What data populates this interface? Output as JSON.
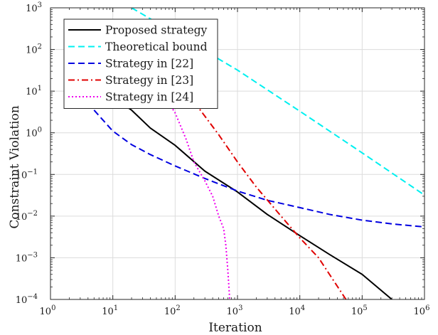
{
  "chart_data": {
    "type": "line",
    "title": "",
    "xlabel": "Iteration",
    "ylabel": "Constraint Violation",
    "xscale": "log",
    "yscale": "log",
    "xlim": [
      1,
      1000000
    ],
    "ylim": [
      0.0001,
      1000
    ],
    "grid": true,
    "legend_position": "top-left",
    "x_ticks": [
      1,
      10,
      100,
      1000,
      10000,
      100000,
      1000000
    ],
    "x_tick_labels": [
      {
        "base": "10",
        "exp": "0"
      },
      {
        "base": "10",
        "exp": "1"
      },
      {
        "base": "10",
        "exp": "2"
      },
      {
        "base": "10",
        "exp": "3"
      },
      {
        "base": "10",
        "exp": "4"
      },
      {
        "base": "10",
        "exp": "5"
      },
      {
        "base": "10",
        "exp": "6"
      }
    ],
    "y_ticks": [
      0.0001,
      0.001,
      0.01,
      0.1,
      1,
      10,
      100,
      1000
    ],
    "y_tick_labels": [
      {
        "base": "10",
        "exp": "−4"
      },
      {
        "base": "10",
        "exp": "−3"
      },
      {
        "base": "10",
        "exp": "−2"
      },
      {
        "base": "10",
        "exp": "−1"
      },
      {
        "base": "10",
        "exp": "0"
      },
      {
        "base": "10",
        "exp": "1"
      },
      {
        "base": "10",
        "exp": "2"
      },
      {
        "base": "10",
        "exp": "3"
      }
    ],
    "series": [
      {
        "name": "Proposed strategy",
        "color": "#000000",
        "style": "solid",
        "points": [
          [
            5,
            10
          ],
          [
            10,
            7
          ],
          [
            20,
            3.5
          ],
          [
            40,
            1.3
          ],
          [
            100,
            0.5
          ],
          [
            300,
            0.12
          ],
          [
            1000,
            0.038
          ],
          [
            3000,
            0.011
          ],
          [
            10000,
            0.0034
          ],
          [
            30000,
            0.0012
          ],
          [
            100000,
            0.0004
          ],
          [
            300000,
            0.0001
          ]
        ]
      },
      {
        "name": "Theoretical bound",
        "color": "#00f0f0",
        "style": "dashed",
        "points": [
          [
            20,
            1000
          ],
          [
            100,
            245
          ],
          [
            1000,
            32
          ],
          [
            10000,
            3.3
          ],
          [
            100000,
            0.33
          ],
          [
            1000000,
            0.032
          ]
        ]
      },
      {
        "name": "Strategy in [22]",
        "color": "#0000e0",
        "style": "dashed",
        "points": [
          [
            5,
            3.5
          ],
          [
            10,
            1.1
          ],
          [
            20,
            0.52
          ],
          [
            40,
            0.3
          ],
          [
            100,
            0.16
          ],
          [
            300,
            0.08
          ],
          [
            1000,
            0.04
          ],
          [
            3000,
            0.024
          ],
          [
            10000,
            0.016
          ],
          [
            30000,
            0.011
          ],
          [
            100000,
            0.008
          ],
          [
            300000,
            0.0065
          ],
          [
            1000000,
            0.0055
          ]
        ]
      },
      {
        "name": "Strategy in [23]",
        "color": "#e00000",
        "style": "dashdot",
        "points": [
          [
            150,
            10
          ],
          [
            300,
            2.5
          ],
          [
            500,
            0.9
          ],
          [
            1000,
            0.2
          ],
          [
            2000,
            0.05
          ],
          [
            5000,
            0.01
          ],
          [
            10000,
            0.003
          ],
          [
            20000,
            0.001
          ],
          [
            55000,
            0.0001
          ]
        ]
      },
      {
        "name": "Strategy in [24]",
        "color": "#ee00ee",
        "style": "dotted",
        "points": [
          [
            60,
            10
          ],
          [
            100,
            3
          ],
          [
            150,
            0.7
          ],
          [
            200,
            0.2
          ],
          [
            300,
            0.07
          ],
          [
            400,
            0.03
          ],
          [
            500,
            0.01
          ],
          [
            600,
            0.005
          ],
          [
            650,
            0.002
          ],
          [
            700,
            0.0005
          ],
          [
            750,
            0.0001
          ]
        ]
      }
    ]
  }
}
